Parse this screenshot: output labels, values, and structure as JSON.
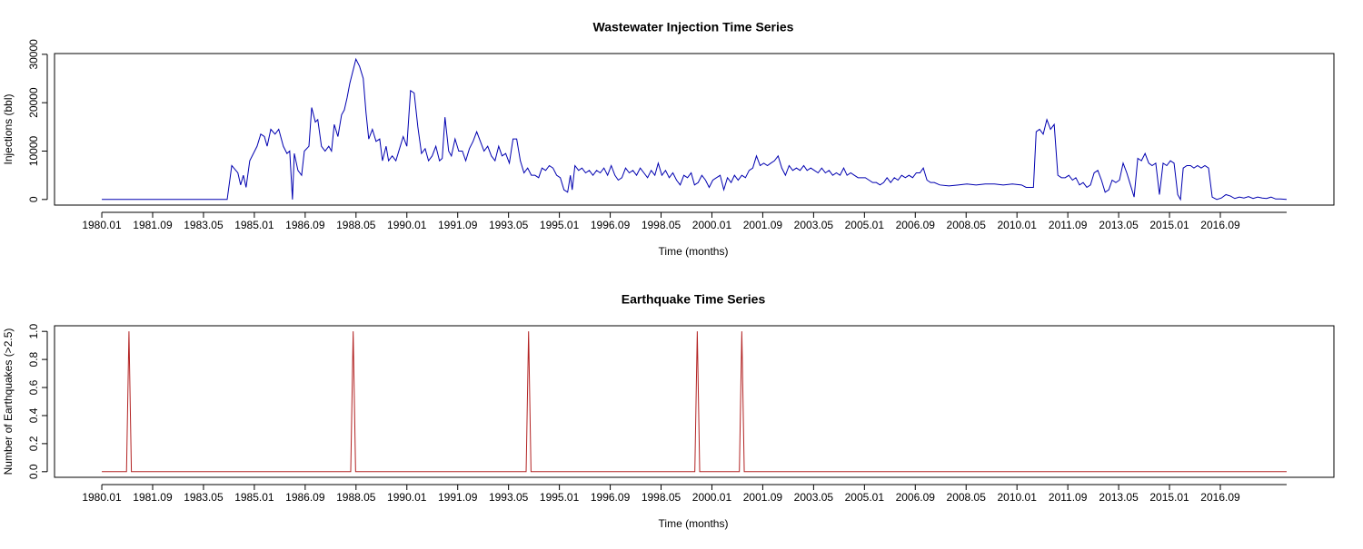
{
  "chart_data": [
    {
      "type": "line",
      "title": "Wastewater Injection Time Series",
      "xlabel": "Time (months)",
      "ylabel": "Injections (bbl)",
      "color": "#0000b0",
      "x": [
        1980.0,
        1984.11,
        1984.26,
        1984.46,
        1984.55,
        1984.64,
        1984.73,
        1984.85,
        1985.09,
        1985.21,
        1985.33,
        1985.42,
        1985.54,
        1985.68,
        1985.8,
        1985.95,
        1986.07,
        1986.16,
        1986.25,
        1986.31,
        1986.43,
        1986.55,
        1986.64,
        1986.79,
        1986.88,
        1987.0,
        1987.08,
        1987.2,
        1987.32,
        1987.44,
        1987.53,
        1987.62,
        1987.74,
        1987.86,
        1987.95,
        1988.04,
        1988.13,
        1988.21,
        1988.33,
        1988.45,
        1988.57,
        1988.66,
        1988.75,
        1988.87,
        1988.99,
        1989.11,
        1989.2,
        1989.32,
        1989.4,
        1989.52,
        1989.64,
        1989.76,
        1989.88,
        1990.0,
        1990.12,
        1990.24,
        1990.36,
        1990.48,
        1990.6,
        1990.71,
        1990.83,
        1990.95,
        1991.07,
        1991.16,
        1991.25,
        1991.37,
        1991.46,
        1991.58,
        1991.7,
        1991.82,
        1991.93,
        1992.05,
        1992.17,
        1992.29,
        1992.41,
        1992.53,
        1992.65,
        1992.77,
        1992.89,
        1993.01,
        1993.12,
        1993.24,
        1993.36,
        1993.48,
        1993.6,
        1993.72,
        1993.84,
        1993.96,
        1994.08,
        1994.2,
        1994.32,
        1994.43,
        1994.55,
        1994.67,
        1994.79,
        1994.91,
        1995.03,
        1995.15,
        1995.27,
        1995.36,
        1995.42,
        1995.51,
        1995.63,
        1995.74,
        1995.86,
        1995.98,
        1996.1,
        1996.22,
        1996.34,
        1996.46,
        1996.58,
        1996.7,
        1996.82,
        1996.93,
        1997.05,
        1997.17,
        1997.29,
        1997.41,
        1997.53,
        1997.65,
        1997.77,
        1997.89,
        1998.01,
        1998.13,
        1998.24,
        1998.36,
        1998.48,
        1998.6,
        1998.72,
        1998.84,
        1998.96,
        1999.08,
        1999.2,
        1999.32,
        1999.43,
        1999.55,
        1999.67,
        1999.79,
        1999.91,
        2000.03,
        2000.15,
        2000.27,
        2000.39,
        2000.51,
        2000.63,
        2000.74,
        2000.86,
        2000.98,
        2001.1,
        2001.22,
        2001.34,
        2001.46,
        2001.58,
        2001.7,
        2001.82,
        2001.93,
        2002.05,
        2002.17,
        2002.29,
        2002.41,
        2002.53,
        2002.65,
        2002.77,
        2002.89,
        2003.01,
        2003.12,
        2003.24,
        2003.36,
        2003.48,
        2003.6,
        2003.72,
        2003.84,
        2003.96,
        2004.08,
        2004.2,
        2004.32,
        2004.43,
        2004.55,
        2004.67,
        2004.79,
        2004.91,
        2005.03,
        2005.15,
        2005.27,
        2005.39,
        2005.51,
        2005.63,
        2005.74,
        2005.86,
        2005.98,
        2006.1,
        2006.22,
        2006.34,
        2006.46,
        2006.58,
        2006.7,
        2006.82,
        2006.93,
        2007.05,
        2007.17,
        2007.29,
        2007.47,
        2007.77,
        2008.07,
        2008.36,
        2008.66,
        2008.96,
        2009.26,
        2009.55,
        2009.85,
        2010.15,
        2010.3,
        2010.54,
        2010.63,
        2010.74,
        2010.86,
        2010.98,
        2011.1,
        2011.22,
        2011.34,
        2011.46,
        2011.58,
        2011.7,
        2011.82,
        2011.93,
        2012.05,
        2012.17,
        2012.29,
        2012.41,
        2012.53,
        2012.65,
        2012.77,
        2012.89,
        2013.01,
        2013.12,
        2013.24,
        2013.36,
        2013.48,
        2013.6,
        2013.72,
        2013.84,
        2013.96,
        2014.08,
        2014.2,
        2014.32,
        2014.43,
        2014.55,
        2014.67,
        2014.79,
        2014.91,
        2015.03,
        2015.15,
        2015.27,
        2015.36,
        2015.45,
        2015.57,
        2015.69,
        2015.8,
        2015.92,
        2016.04,
        2016.16,
        2016.28,
        2016.4,
        2016.55,
        2016.7,
        2016.85,
        2017.0,
        2017.14,
        2017.29,
        2017.44,
        2017.59,
        2017.74,
        2017.89,
        2018.04,
        2018.18,
        2018.33,
        2018.48,
        2018.63,
        2018.84
      ],
      "values": [
        0,
        0,
        7000,
        5500,
        3000,
        5000,
        2500,
        8000,
        11000,
        13500,
        13000,
        11000,
        14500,
        13500,
        14500,
        11000,
        9500,
        10000,
        0,
        9500,
        6000,
        5000,
        10000,
        11000,
        19000,
        16000,
        16500,
        11000,
        10000,
        11000,
        10000,
        15500,
        13000,
        17500,
        18500,
        21000,
        24000,
        26000,
        29000,
        27500,
        25000,
        18000,
        12500,
        14500,
        12000,
        12500,
        8000,
        11000,
        8000,
        9000,
        8000,
        10500,
        13000,
        11000,
        22500,
        22000,
        15000,
        9500,
        10500,
        8000,
        9000,
        11000,
        8000,
        8500,
        17000,
        10000,
        9000,
        12500,
        10000,
        10000,
        8000,
        10500,
        12000,
        14000,
        12000,
        10000,
        11000,
        9000,
        8000,
        11000,
        9000,
        9500,
        7500,
        12500,
        12500,
        8000,
        5500,
        6500,
        5000,
        5000,
        4500,
        6500,
        6000,
        7000,
        6500,
        5000,
        4500,
        2000,
        1500,
        5000,
        2000,
        7000,
        6000,
        6500,
        5500,
        6000,
        5000,
        6000,
        5500,
        6500,
        5000,
        7000,
        5000,
        4000,
        4500,
        6500,
        5500,
        6000,
        5000,
        6500,
        5500,
        4500,
        6000,
        5000,
        7500,
        5000,
        6000,
        4500,
        5500,
        4000,
        3000,
        5000,
        4500,
        5500,
        3000,
        3500,
        5000,
        4000,
        2500,
        4000,
        4500,
        5000,
        2000,
        4500,
        3500,
        5000,
        4000,
        5000,
        4500,
        6000,
        6500,
        9000,
        7000,
        7500,
        7000,
        7500,
        8000,
        9000,
        6500,
        5000,
        7000,
        6000,
        6500,
        6000,
        7000,
        6000,
        6500,
        6000,
        5500,
        6500,
        5500,
        6000,
        5000,
        5500,
        5000,
        6500,
        5000,
        5500,
        5000,
        4500,
        4500,
        4500,
        4000,
        3500,
        3500,
        3000,
        3500,
        4500,
        3500,
        4500,
        4000,
        5000,
        4500,
        5000,
        4500,
        5500,
        5500,
        6500,
        4000,
        3500,
        3500,
        3000,
        2800,
        3000,
        3200,
        3000,
        3200,
        3200,
        3000,
        3200,
        3000,
        2500,
        2500,
        14000,
        14500,
        13500,
        16500,
        14500,
        15500,
        5000,
        4500,
        4500,
        5000,
        4000,
        4500,
        3000,
        3500,
        2500,
        3000,
        5500,
        6000,
        4000,
        1500,
        2000,
        4000,
        3500,
        4000,
        7500,
        5500,
        3000,
        500,
        8500,
        8000,
        9500,
        7500,
        7000,
        7500,
        1000,
        7500,
        7000,
        8000,
        7500,
        1000,
        0,
        6500,
        7000,
        7000,
        6500,
        7000,
        6500,
        7000,
        6500,
        500,
        0,
        300,
        1000,
        700,
        200,
        500,
        300,
        600,
        200,
        500,
        300,
        200,
        500,
        100,
        100,
        0
      ],
      "xlim": [
        1978.45,
        2020.39
      ],
      "xticks": [
        {
          "value": 1980,
          "label": "1980.01"
        },
        {
          "value": 1981.6667,
          "label": "1981.09"
        },
        {
          "value": 1983.3333,
          "label": "1983.05"
        },
        {
          "value": 1985,
          "label": "1985.01"
        },
        {
          "value": 1986.6667,
          "label": "1986.09"
        },
        {
          "value": 1988.3333,
          "label": "1988.05"
        },
        {
          "value": 1990,
          "label": "1990.01"
        },
        {
          "value": 1991.6667,
          "label": "1991.09"
        },
        {
          "value": 1993.3333,
          "label": "1993.05"
        },
        {
          "value": 1995,
          "label": "1995.01"
        },
        {
          "value": 1996.6667,
          "label": "1996.09"
        },
        {
          "value": 1998.3333,
          "label": "1998.05"
        },
        {
          "value": 2000,
          "label": "2000.01"
        },
        {
          "value": 2001.6667,
          "label": "2001.09"
        },
        {
          "value": 2003.3333,
          "label": "2003.05"
        },
        {
          "value": 2005,
          "label": "2005.01"
        },
        {
          "value": 2006.6667,
          "label": "2006.09"
        },
        {
          "value": 2008.3333,
          "label": "2008.05"
        },
        {
          "value": 2010,
          "label": "2010.01"
        },
        {
          "value": 2011.6667,
          "label": "2011.09"
        },
        {
          "value": 2013.3333,
          "label": "2013.05"
        },
        {
          "value": 2015,
          "label": "2015.01"
        },
        {
          "value": 2016.6667,
          "label": "2016.09"
        }
      ],
      "ylim": [
        -1160,
        30160
      ],
      "yticks": [
        0,
        10000,
        20000,
        30000
      ]
    },
    {
      "type": "line",
      "title": "Earthquake Time Series",
      "xlabel": "Time (months)",
      "ylabel": "Number of Earthquakes (>2.5)",
      "color": "#b22222",
      "x": [
        1980.0,
        1980.81,
        1980.89,
        1980.97,
        1988.16,
        1988.24,
        1988.32,
        1993.91,
        1993.99,
        1994.07,
        1999.44,
        1999.52,
        1999.6,
        2000.9,
        2000.98,
        2001.06,
        2018.84
      ],
      "values": [
        0,
        0,
        1,
        0,
        0,
        1,
        0,
        0,
        1,
        0,
        0,
        1,
        0,
        0,
        1,
        0,
        0
      ],
      "xlim": [
        1978.45,
        2020.39
      ],
      "xticks": [
        {
          "value": 1980,
          "label": "1980.01"
        },
        {
          "value": 1981.6667,
          "label": "1981.09"
        },
        {
          "value": 1983.3333,
          "label": "1983.05"
        },
        {
          "value": 1985,
          "label": "1985.01"
        },
        {
          "value": 1986.6667,
          "label": "1986.09"
        },
        {
          "value": 1988.3333,
          "label": "1988.05"
        },
        {
          "value": 1990,
          "label": "1990.01"
        },
        {
          "value": 1991.6667,
          "label": "1991.09"
        },
        {
          "value": 1993.3333,
          "label": "1993.05"
        },
        {
          "value": 1995,
          "label": "1995.01"
        },
        {
          "value": 1996.6667,
          "label": "1996.09"
        },
        {
          "value": 1998.3333,
          "label": "1998.05"
        },
        {
          "value": 2000,
          "label": "2000.01"
        },
        {
          "value": 2001.6667,
          "label": "2001.09"
        },
        {
          "value": 2003.3333,
          "label": "2003.05"
        },
        {
          "value": 2005,
          "label": "2005.01"
        },
        {
          "value": 2006.6667,
          "label": "2006.09"
        },
        {
          "value": 2008.3333,
          "label": "2008.05"
        },
        {
          "value": 2010,
          "label": "2010.01"
        },
        {
          "value": 2011.6667,
          "label": "2011.09"
        },
        {
          "value": 2013.3333,
          "label": "2013.05"
        },
        {
          "value": 2015,
          "label": "2015.01"
        },
        {
          "value": 2016.6667,
          "label": "2016.09"
        }
      ],
      "ylim": [
        -0.04,
        1.04
      ],
      "yticks": [
        {
          "value": 0,
          "label": "0.0"
        },
        0.2,
        0.4,
        0.6,
        0.8,
        {
          "value": 1,
          "label": "1.0"
        }
      ]
    }
  ]
}
